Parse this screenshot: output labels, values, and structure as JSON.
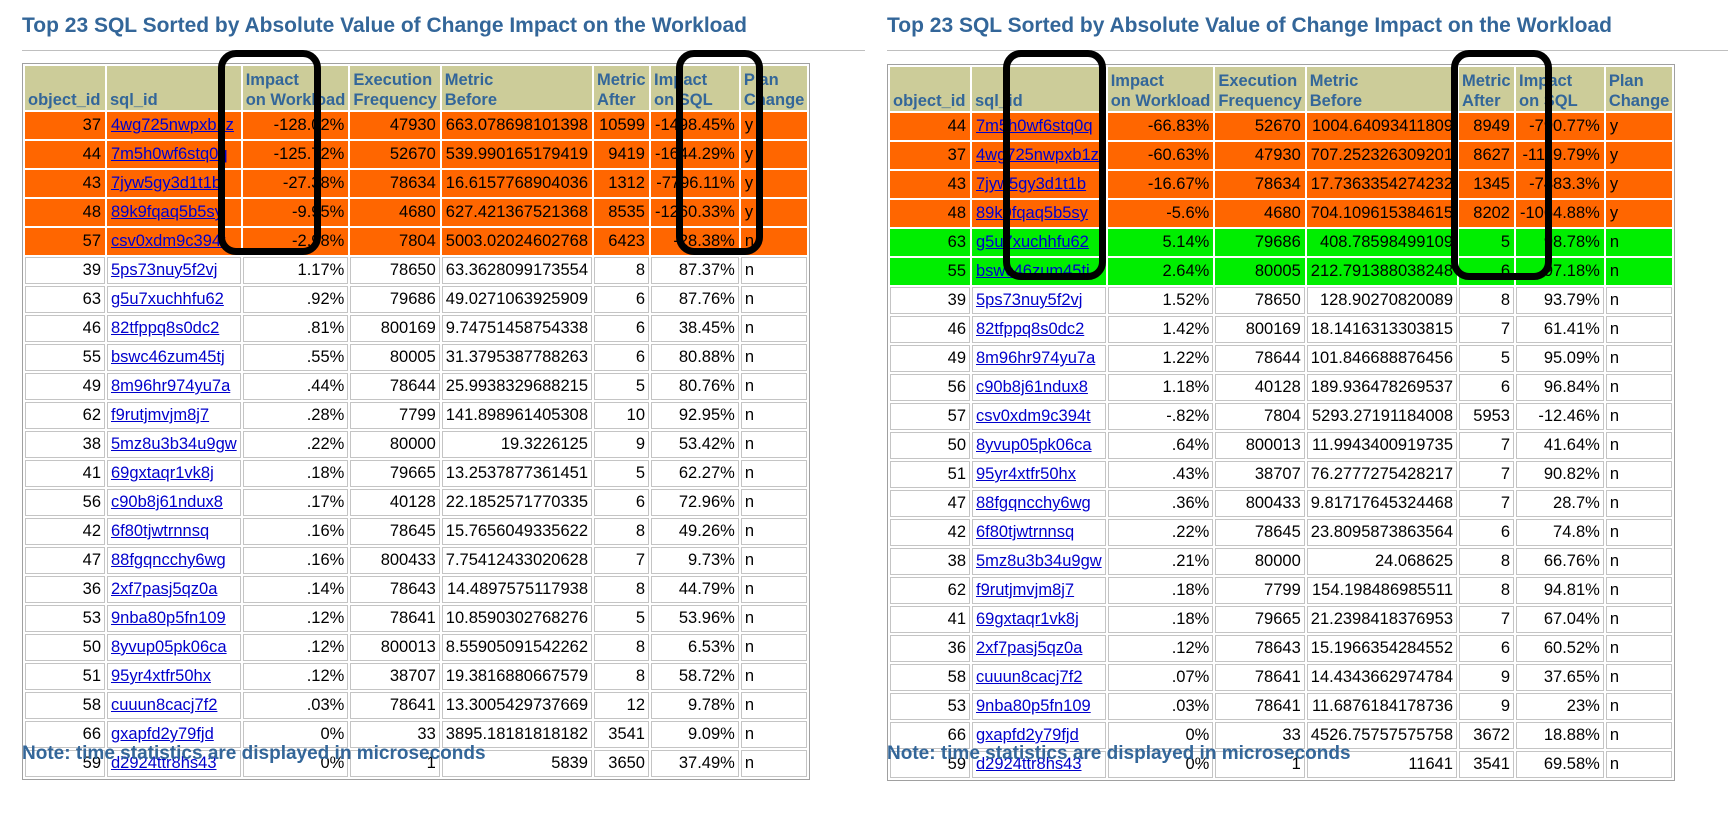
{
  "panels": [
    {
      "title": "Top 23 SQL Sorted by Absolute Value of Change Impact on the Workload",
      "note": "Note: time statistics are displayed in microseconds",
      "headers": [
        "object_id",
        "sql_id",
        "Impact on Workload",
        "Execution Frequency",
        "Metric Before",
        "Metric After",
        "Impact on SQL",
        "Plan Change"
      ],
      "rows": [
        {
          "object_id": "37",
          "sql_id": "4wg725nwpxb1z",
          "impact_workload": "-128.02%",
          "exec_freq": "47930",
          "metric_before": "663.078698101398",
          "metric_after": "10599",
          "impact_sql": "-1498.45%",
          "plan_change": "y",
          "status": "regressed"
        },
        {
          "object_id": "44",
          "sql_id": "7m5h0wf6stq0q",
          "impact_workload": "-125.72%",
          "exec_freq": "52670",
          "metric_before": "539.990165179419",
          "metric_after": "9419",
          "impact_sql": "-1644.29%",
          "plan_change": "y",
          "status": "regressed"
        },
        {
          "object_id": "43",
          "sql_id": "7jyw5gy3d1t1b",
          "impact_workload": "-27.38%",
          "exec_freq": "78634",
          "metric_before": "16.6157768904036",
          "metric_after": "1312",
          "impact_sql": "-7796.11%",
          "plan_change": "y",
          "status": "regressed"
        },
        {
          "object_id": "48",
          "sql_id": "89k9fqaq5b5sy",
          "impact_workload": "-9.95%",
          "exec_freq": "4680",
          "metric_before": "627.421367521368",
          "metric_after": "8535",
          "impact_sql": "-1260.33%",
          "plan_change": "y",
          "status": "regressed"
        },
        {
          "object_id": "57",
          "sql_id": "csv0xdm9c394t",
          "impact_workload": "-2.98%",
          "exec_freq": "7804",
          "metric_before": "5003.02024602768",
          "metric_after": "6423",
          "impact_sql": "-28.38%",
          "plan_change": "n",
          "status": "regressed"
        },
        {
          "object_id": "39",
          "sql_id": "5ps73nuy5f2vj",
          "impact_workload": "1.17%",
          "exec_freq": "78650",
          "metric_before": "63.3628099173554",
          "metric_after": "8",
          "impact_sql": "87.37%",
          "plan_change": "n",
          "status": "none"
        },
        {
          "object_id": "63",
          "sql_id": "g5u7xuchhfu62",
          "impact_workload": ".92%",
          "exec_freq": "79686",
          "metric_before": "49.0271063925909",
          "metric_after": "6",
          "impact_sql": "87.76%",
          "plan_change": "n",
          "status": "none"
        },
        {
          "object_id": "46",
          "sql_id": "82tfppq8s0dc2",
          "impact_workload": ".81%",
          "exec_freq": "800169",
          "metric_before": "9.74751458754338",
          "metric_after": "6",
          "impact_sql": "38.45%",
          "plan_change": "n",
          "status": "none"
        },
        {
          "object_id": "55",
          "sql_id": "bswc46zum45tj",
          "impact_workload": ".55%",
          "exec_freq": "80005",
          "metric_before": "31.3795387788263",
          "metric_after": "6",
          "impact_sql": "80.88%",
          "plan_change": "n",
          "status": "none"
        },
        {
          "object_id": "49",
          "sql_id": "8m96hr974yu7a",
          "impact_workload": ".44%",
          "exec_freq": "78644",
          "metric_before": "25.9938329688215",
          "metric_after": "5",
          "impact_sql": "80.76%",
          "plan_change": "n",
          "status": "none"
        },
        {
          "object_id": "62",
          "sql_id": "f9rutjmvjm8j7",
          "impact_workload": ".28%",
          "exec_freq": "7799",
          "metric_before": "141.898961405308",
          "metric_after": "10",
          "impact_sql": "92.95%",
          "plan_change": "n",
          "status": "none"
        },
        {
          "object_id": "38",
          "sql_id": "5mz8u3b34u9gw",
          "impact_workload": ".22%",
          "exec_freq": "80000",
          "metric_before": "19.3226125",
          "metric_after": "9",
          "impact_sql": "53.42%",
          "plan_change": "n",
          "status": "none"
        },
        {
          "object_id": "41",
          "sql_id": "69gxtaqr1vk8j",
          "impact_workload": ".18%",
          "exec_freq": "79665",
          "metric_before": "13.2537877361451",
          "metric_after": "5",
          "impact_sql": "62.27%",
          "plan_change": "n",
          "status": "none"
        },
        {
          "object_id": "56",
          "sql_id": "c90b8j61ndux8",
          "impact_workload": ".17%",
          "exec_freq": "40128",
          "metric_before": "22.1852571770335",
          "metric_after": "6",
          "impact_sql": "72.96%",
          "plan_change": "n",
          "status": "none"
        },
        {
          "object_id": "42",
          "sql_id": "6f80tjwtrnnsq",
          "impact_workload": ".16%",
          "exec_freq": "78645",
          "metric_before": "15.7656049335622",
          "metric_after": "8",
          "impact_sql": "49.26%",
          "plan_change": "n",
          "status": "none"
        },
        {
          "object_id": "47",
          "sql_id": "88fgqncchy6wg",
          "impact_workload": ".16%",
          "exec_freq": "800433",
          "metric_before": "7.75412433020628",
          "metric_after": "7",
          "impact_sql": "9.73%",
          "plan_change": "n",
          "status": "none"
        },
        {
          "object_id": "36",
          "sql_id": "2xf7pasj5qz0a",
          "impact_workload": ".14%",
          "exec_freq": "78643",
          "metric_before": "14.4897575117938",
          "metric_after": "8",
          "impact_sql": "44.79%",
          "plan_change": "n",
          "status": "none"
        },
        {
          "object_id": "53",
          "sql_id": "9nba80p5fn109",
          "impact_workload": ".12%",
          "exec_freq": "78641",
          "metric_before": "10.8590302768276",
          "metric_after": "5",
          "impact_sql": "53.96%",
          "plan_change": "n",
          "status": "none"
        },
        {
          "object_id": "50",
          "sql_id": "8yvup05pk06ca",
          "impact_workload": ".12%",
          "exec_freq": "800013",
          "metric_before": "8.55905091542262",
          "metric_after": "8",
          "impact_sql": "6.53%",
          "plan_change": "n",
          "status": "none"
        },
        {
          "object_id": "51",
          "sql_id": "95yr4xtfr50hx",
          "impact_workload": ".12%",
          "exec_freq": "38707",
          "metric_before": "19.3816880667579",
          "metric_after": "8",
          "impact_sql": "58.72%",
          "plan_change": "n",
          "status": "none"
        },
        {
          "object_id": "58",
          "sql_id": "cuuun8cacj7f2",
          "impact_workload": ".03%",
          "exec_freq": "78641",
          "metric_before": "13.3005429737669",
          "metric_after": "12",
          "impact_sql": "9.78%",
          "plan_change": "n",
          "status": "none"
        },
        {
          "object_id": "66",
          "sql_id": "gxapfd2y79fjd",
          "impact_workload": "0%",
          "exec_freq": "33",
          "metric_before": "3895.18181818182",
          "metric_after": "3541",
          "impact_sql": "9.09%",
          "plan_change": "n",
          "status": "none"
        },
        {
          "object_id": "59",
          "sql_id": "d2924ttr8hs43",
          "impact_workload": "0%",
          "exec_freq": "1",
          "metric_before": "5839",
          "metric_after": "3650",
          "impact_sql": "37.49%",
          "plan_change": "n",
          "status": "none"
        }
      ]
    },
    {
      "title": "Top 23 SQL Sorted by Absolute Value of Change Impact on the Workload",
      "note": "Note: time statistics are displayed in microseconds",
      "headers": [
        "object_id",
        "sql_id",
        "Impact on Workload",
        "Execution Frequency",
        "Metric Before",
        "Metric After",
        "Impact on SQL",
        "Plan Change"
      ],
      "rows": [
        {
          "object_id": "44",
          "sql_id": "7m5h0wf6stq0q",
          "impact_workload": "-66.83%",
          "exec_freq": "52670",
          "metric_before": "1004.64093411809",
          "metric_after": "8949",
          "impact_sql": "-790.77%",
          "plan_change": "y",
          "status": "regressed"
        },
        {
          "object_id": "37",
          "sql_id": "4wg725nwpxb1z",
          "impact_workload": "-60.63%",
          "exec_freq": "47930",
          "metric_before": "707.252326309201",
          "metric_after": "8627",
          "impact_sql": "-1119.79%",
          "plan_change": "y",
          "status": "regressed"
        },
        {
          "object_id": "43",
          "sql_id": "7jyw5gy3d1t1b",
          "impact_workload": "-16.67%",
          "exec_freq": "78634",
          "metric_before": "17.7363354274232",
          "metric_after": "1345",
          "impact_sql": "-7483.3%",
          "plan_change": "y",
          "status": "regressed"
        },
        {
          "object_id": "48",
          "sql_id": "89k9fqaq5b5sy",
          "impact_workload": "-5.6%",
          "exec_freq": "4680",
          "metric_before": "704.109615384615",
          "metric_after": "8202",
          "impact_sql": "-1064.88%",
          "plan_change": "y",
          "status": "regressed"
        },
        {
          "object_id": "63",
          "sql_id": "g5u7xuchhfu62",
          "impact_workload": "5.14%",
          "exec_freq": "79686",
          "metric_before": "408.78598499109",
          "metric_after": "5",
          "impact_sql": "98.78%",
          "plan_change": "n",
          "status": "improved"
        },
        {
          "object_id": "55",
          "sql_id": "bswc46zum45tj",
          "impact_workload": "2.64%",
          "exec_freq": "80005",
          "metric_before": "212.791388038248",
          "metric_after": "6",
          "impact_sql": "97.18%",
          "plan_change": "n",
          "status": "improved"
        },
        {
          "object_id": "39",
          "sql_id": "5ps73nuy5f2vj",
          "impact_workload": "1.52%",
          "exec_freq": "78650",
          "metric_before": "128.90270820089",
          "metric_after": "8",
          "impact_sql": "93.79%",
          "plan_change": "n",
          "status": "none"
        },
        {
          "object_id": "46",
          "sql_id": "82tfppq8s0dc2",
          "impact_workload": "1.42%",
          "exec_freq": "800169",
          "metric_before": "18.1416313303815",
          "metric_after": "7",
          "impact_sql": "61.41%",
          "plan_change": "n",
          "status": "none"
        },
        {
          "object_id": "49",
          "sql_id": "8m96hr974yu7a",
          "impact_workload": "1.22%",
          "exec_freq": "78644",
          "metric_before": "101.846688876456",
          "metric_after": "5",
          "impact_sql": "95.09%",
          "plan_change": "n",
          "status": "none"
        },
        {
          "object_id": "56",
          "sql_id": "c90b8j61ndux8",
          "impact_workload": "1.18%",
          "exec_freq": "40128",
          "metric_before": "189.936478269537",
          "metric_after": "6",
          "impact_sql": "96.84%",
          "plan_change": "n",
          "status": "none"
        },
        {
          "object_id": "57",
          "sql_id": "csv0xdm9c394t",
          "impact_workload": "-.82%",
          "exec_freq": "7804",
          "metric_before": "5293.27191184008",
          "metric_after": "5953",
          "impact_sql": "-12.46%",
          "plan_change": "n",
          "status": "none"
        },
        {
          "object_id": "50",
          "sql_id": "8yvup05pk06ca",
          "impact_workload": ".64%",
          "exec_freq": "800013",
          "metric_before": "11.9943400919735",
          "metric_after": "7",
          "impact_sql": "41.64%",
          "plan_change": "n",
          "status": "none"
        },
        {
          "object_id": "51",
          "sql_id": "95yr4xtfr50hx",
          "impact_workload": ".43%",
          "exec_freq": "38707",
          "metric_before": "76.2777275428217",
          "metric_after": "7",
          "impact_sql": "90.82%",
          "plan_change": "n",
          "status": "none"
        },
        {
          "object_id": "47",
          "sql_id": "88fgqncchy6wg",
          "impact_workload": ".36%",
          "exec_freq": "800433",
          "metric_before": "9.81717645324468",
          "metric_after": "7",
          "impact_sql": "28.7%",
          "plan_change": "n",
          "status": "none"
        },
        {
          "object_id": "42",
          "sql_id": "6f80tjwtrnnsq",
          "impact_workload": ".22%",
          "exec_freq": "78645",
          "metric_before": "23.8095873863564",
          "metric_after": "6",
          "impact_sql": "74.8%",
          "plan_change": "n",
          "status": "none"
        },
        {
          "object_id": "38",
          "sql_id": "5mz8u3b34u9gw",
          "impact_workload": ".21%",
          "exec_freq": "80000",
          "metric_before": "24.068625",
          "metric_after": "8",
          "impact_sql": "66.76%",
          "plan_change": "n",
          "status": "none"
        },
        {
          "object_id": "62",
          "sql_id": "f9rutjmvjm8j7",
          "impact_workload": ".18%",
          "exec_freq": "7799",
          "metric_before": "154.198486985511",
          "metric_after": "8",
          "impact_sql": "94.81%",
          "plan_change": "n",
          "status": "none"
        },
        {
          "object_id": "41",
          "sql_id": "69gxtaqr1vk8j",
          "impact_workload": ".18%",
          "exec_freq": "79665",
          "metric_before": "21.2398418376953",
          "metric_after": "7",
          "impact_sql": "67.04%",
          "plan_change": "n",
          "status": "none"
        },
        {
          "object_id": "36",
          "sql_id": "2xf7pasj5qz0a",
          "impact_workload": ".12%",
          "exec_freq": "78643",
          "metric_before": "15.1966354284552",
          "metric_after": "6",
          "impact_sql": "60.52%",
          "plan_change": "n",
          "status": "none"
        },
        {
          "object_id": "58",
          "sql_id": "cuuun8cacj7f2",
          "impact_workload": ".07%",
          "exec_freq": "78641",
          "metric_before": "14.4343662974784",
          "metric_after": "9",
          "impact_sql": "37.65%",
          "plan_change": "n",
          "status": "none"
        },
        {
          "object_id": "53",
          "sql_id": "9nba80p5fn109",
          "impact_workload": ".03%",
          "exec_freq": "78641",
          "metric_before": "11.6876184178736",
          "metric_after": "9",
          "impact_sql": "23%",
          "plan_change": "n",
          "status": "none"
        },
        {
          "object_id": "66",
          "sql_id": "gxapfd2y79fjd",
          "impact_workload": "0%",
          "exec_freq": "33",
          "metric_before": "4526.75757575758",
          "metric_after": "3672",
          "impact_sql": "18.88%",
          "plan_change": "n",
          "status": "none"
        },
        {
          "object_id": "59",
          "sql_id": "d2924ttr8hs43",
          "impact_workload": "0%",
          "exec_freq": "1",
          "metric_before": "11641",
          "metric_after": "3541",
          "impact_sql": "69.58%",
          "plan_change": "n",
          "status": "none"
        }
      ]
    }
  ],
  "colors": {
    "title": "#336699",
    "header_bg": "#cccc99",
    "regressed": "#ff6600",
    "improved": "#00ee00",
    "link": "#0000cc",
    "highlight_border": "#000000"
  }
}
